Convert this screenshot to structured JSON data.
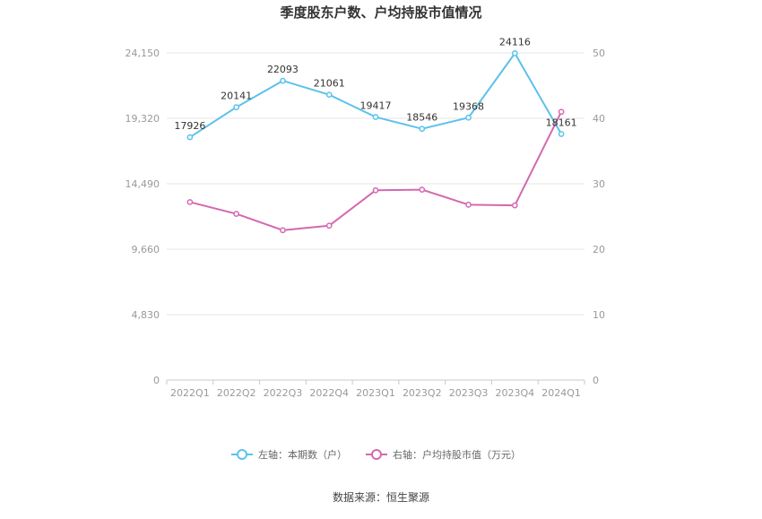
{
  "chart_data": {
    "type": "line",
    "title": "季度股东户数、户均持股市值情况",
    "categories": [
      "2022Q1",
      "2022Q2",
      "2022Q3",
      "2022Q4",
      "2023Q1",
      "2023Q2",
      "2023Q3",
      "2023Q4",
      "2024Q1"
    ],
    "left_axis": {
      "min": 0,
      "max": 24150,
      "ticks": [
        0,
        4830,
        9660,
        14490,
        19320,
        24150
      ],
      "tick_labels": [
        "0",
        "4,830",
        "9,660",
        "14,490",
        "19,320",
        "24,150"
      ]
    },
    "right_axis": {
      "min": 0,
      "max": 50,
      "ticks": [
        0,
        10,
        20,
        30,
        40,
        50
      ],
      "tick_labels": [
        "0",
        "10",
        "20",
        "30",
        "40",
        "50"
      ]
    },
    "series": [
      {
        "name": "左轴：本期数（户）",
        "axis": "left",
        "color": "#5bc2eb",
        "values": [
          17926,
          20141,
          22093,
          21061,
          19417,
          18546,
          19368,
          24116,
          18161
        ],
        "labels": [
          "17926",
          "20141",
          "22093",
          "21061",
          "19417",
          "18546",
          "19368",
          "24116",
          "18161"
        ]
      },
      {
        "name": "右轴：户均持股市值（万元）",
        "axis": "right",
        "color": "#d468b0",
        "values": [
          27.2,
          25.4,
          22.9,
          23.6,
          29.0,
          29.1,
          26.8,
          26.7,
          41.0
        ]
      }
    ],
    "grid": true,
    "legend_position": "bottom"
  },
  "source": "数据来源：恒生聚源"
}
